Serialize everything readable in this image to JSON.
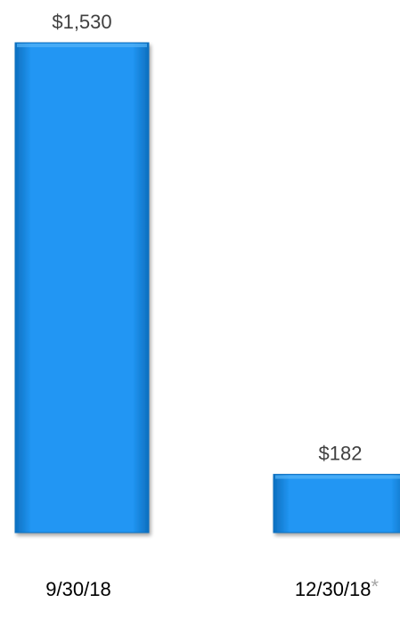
{
  "chart_data": {
    "type": "bar",
    "categories": [
      "9/30/18",
      "12/30/18"
    ],
    "values": [
      1530,
      182
    ],
    "value_labels": [
      "$1,530",
      "$182"
    ],
    "category_marks": [
      "",
      "*"
    ],
    "title": "",
    "xlabel": "",
    "ylabel": "",
    "ylim": [
      0,
      1530
    ],
    "grid": false,
    "colors": {
      "bar": "#2196f3",
      "bar_dark": "#0d6fbf",
      "bar_light": "#55b4f7",
      "value_text": "#404040",
      "category_text": "#000000",
      "mark_text": "#a6a6a6"
    }
  }
}
